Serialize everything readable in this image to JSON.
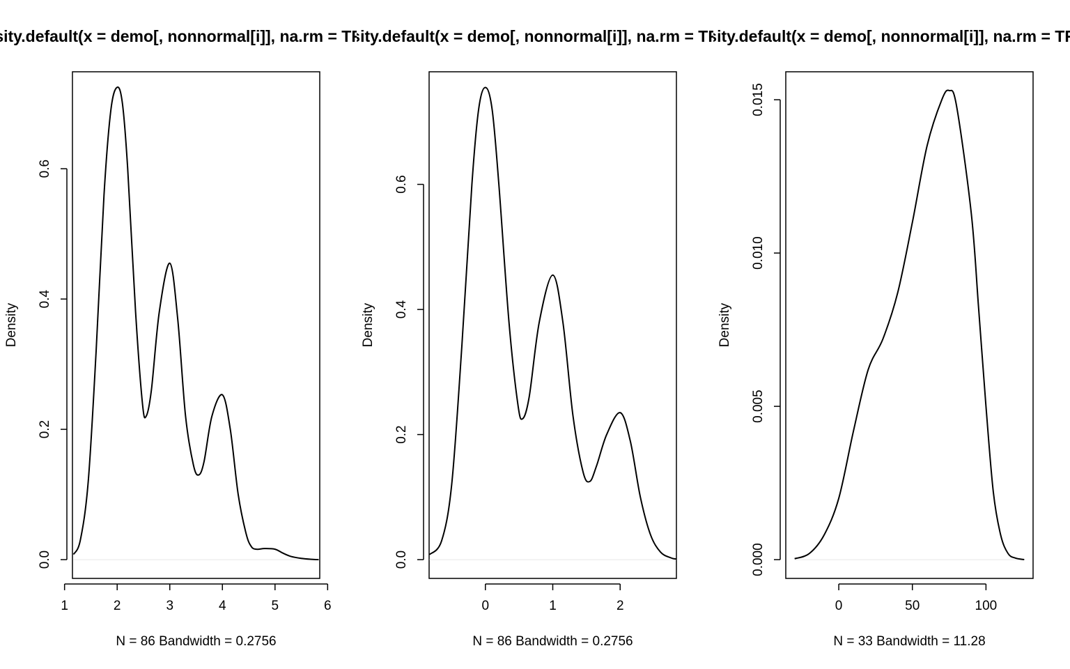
{
  "chart_data": [
    {
      "type": "line",
      "title": "density.default(x = demo[, nonnormal[i]], na.rm = TRUE)",
      "xlabel": "N = 86   Bandwidth = 0.2756",
      "ylabel": "Density",
      "xlim": [
        1.15,
        5.85
      ],
      "ylim": [
        -0.0288,
        0.7488
      ],
      "x_ticks": [
        1,
        2,
        3,
        4,
        5,
        6
      ],
      "x_tick_labels": [
        "1",
        "2",
        "3",
        "4",
        "5",
        "6"
      ],
      "y_ticks": [
        0.0,
        0.2,
        0.4,
        0.6
      ],
      "y_tick_labels": [
        "0.0",
        "0.2",
        "0.4",
        "0.6"
      ],
      "grid": false,
      "series": [
        {
          "x": [
            1.17,
            1.3,
            1.45,
            1.6,
            1.75,
            1.88,
            2.0,
            2.1,
            2.2,
            2.35,
            2.48,
            2.55,
            2.65,
            2.8,
            3.0,
            3.15,
            3.3,
            3.45,
            3.55,
            3.65,
            3.8,
            4.0,
            4.15,
            4.3,
            4.45,
            4.55,
            4.65,
            4.8,
            5.0,
            5.15,
            5.3,
            5.5,
            5.7,
            5.83
          ],
          "y": [
            0.008,
            0.03,
            0.12,
            0.32,
            0.56,
            0.69,
            0.725,
            0.7,
            0.6,
            0.38,
            0.24,
            0.22,
            0.26,
            0.38,
            0.455,
            0.37,
            0.22,
            0.145,
            0.13,
            0.15,
            0.22,
            0.253,
            0.2,
            0.1,
            0.04,
            0.02,
            0.016,
            0.017,
            0.016,
            0.01,
            0.005,
            0.002,
            0.0005,
            0.0
          ]
        }
      ]
    },
    {
      "type": "line",
      "title": "density.default(x = demo[, nonnormal[i]], na.rm = TRUE)",
      "xlabel": "N = 86   Bandwidth = 0.2756",
      "ylabel": "Density",
      "xlim": [
        -0.835,
        2.835
      ],
      "ylim": [
        -0.03,
        0.78
      ],
      "x_ticks": [
        0,
        1,
        2
      ],
      "x_tick_labels": [
        "0",
        "1",
        "2"
      ],
      "y_ticks": [
        0.0,
        0.2,
        0.4,
        0.6
      ],
      "y_tick_labels": [
        "0.0",
        "0.2",
        "0.4",
        "0.6"
      ],
      "grid": false,
      "series": [
        {
          "x": [
            -0.83,
            -0.65,
            -0.5,
            -0.35,
            -0.2,
            -0.1,
            0.0,
            0.1,
            0.2,
            0.35,
            0.48,
            0.55,
            0.65,
            0.8,
            1.0,
            1.15,
            1.3,
            1.45,
            1.55,
            1.65,
            1.8,
            2.0,
            2.15,
            2.3,
            2.45,
            2.6,
            2.75,
            2.83
          ],
          "y": [
            0.008,
            0.03,
            0.12,
            0.34,
            0.6,
            0.72,
            0.755,
            0.72,
            0.6,
            0.38,
            0.25,
            0.225,
            0.26,
            0.38,
            0.455,
            0.38,
            0.23,
            0.14,
            0.125,
            0.15,
            0.2,
            0.235,
            0.19,
            0.1,
            0.04,
            0.012,
            0.003,
            0.001
          ]
        }
      ]
    },
    {
      "type": "line",
      "title": "density.default(x = demo[, nonnormal[i]], na.rm = TRUE)",
      "xlabel": "N = 33   Bandwidth = 11.28",
      "ylabel": "Density",
      "xlim": [
        -36,
        132
      ],
      "ylim": [
        -0.000612,
        0.015912
      ],
      "x_ticks": [
        0,
        50,
        100
      ],
      "x_tick_labels": [
        "0",
        "50",
        "100"
      ],
      "y_ticks": [
        0.0,
        0.005,
        0.01,
        0.015
      ],
      "y_tick_labels": [
        "0.000",
        "0.005",
        "0.010",
        "0.015"
      ],
      "grid": false,
      "series": [
        {
          "x": [
            -30,
            -20,
            -10,
            0,
            10,
            20,
            30,
            40,
            50,
            60,
            70,
            75,
            80,
            90,
            95,
            100,
            105,
            110,
            115,
            120,
            126
          ],
          "y": [
            3e-05,
            0.0002,
            0.0008,
            0.002,
            0.0042,
            0.0062,
            0.0072,
            0.0087,
            0.011,
            0.0135,
            0.015,
            0.0153,
            0.0148,
            0.0113,
            0.0082,
            0.005,
            0.0022,
            0.0008,
            0.0002,
            5e-05,
            0.0
          ]
        }
      ]
    }
  ]
}
